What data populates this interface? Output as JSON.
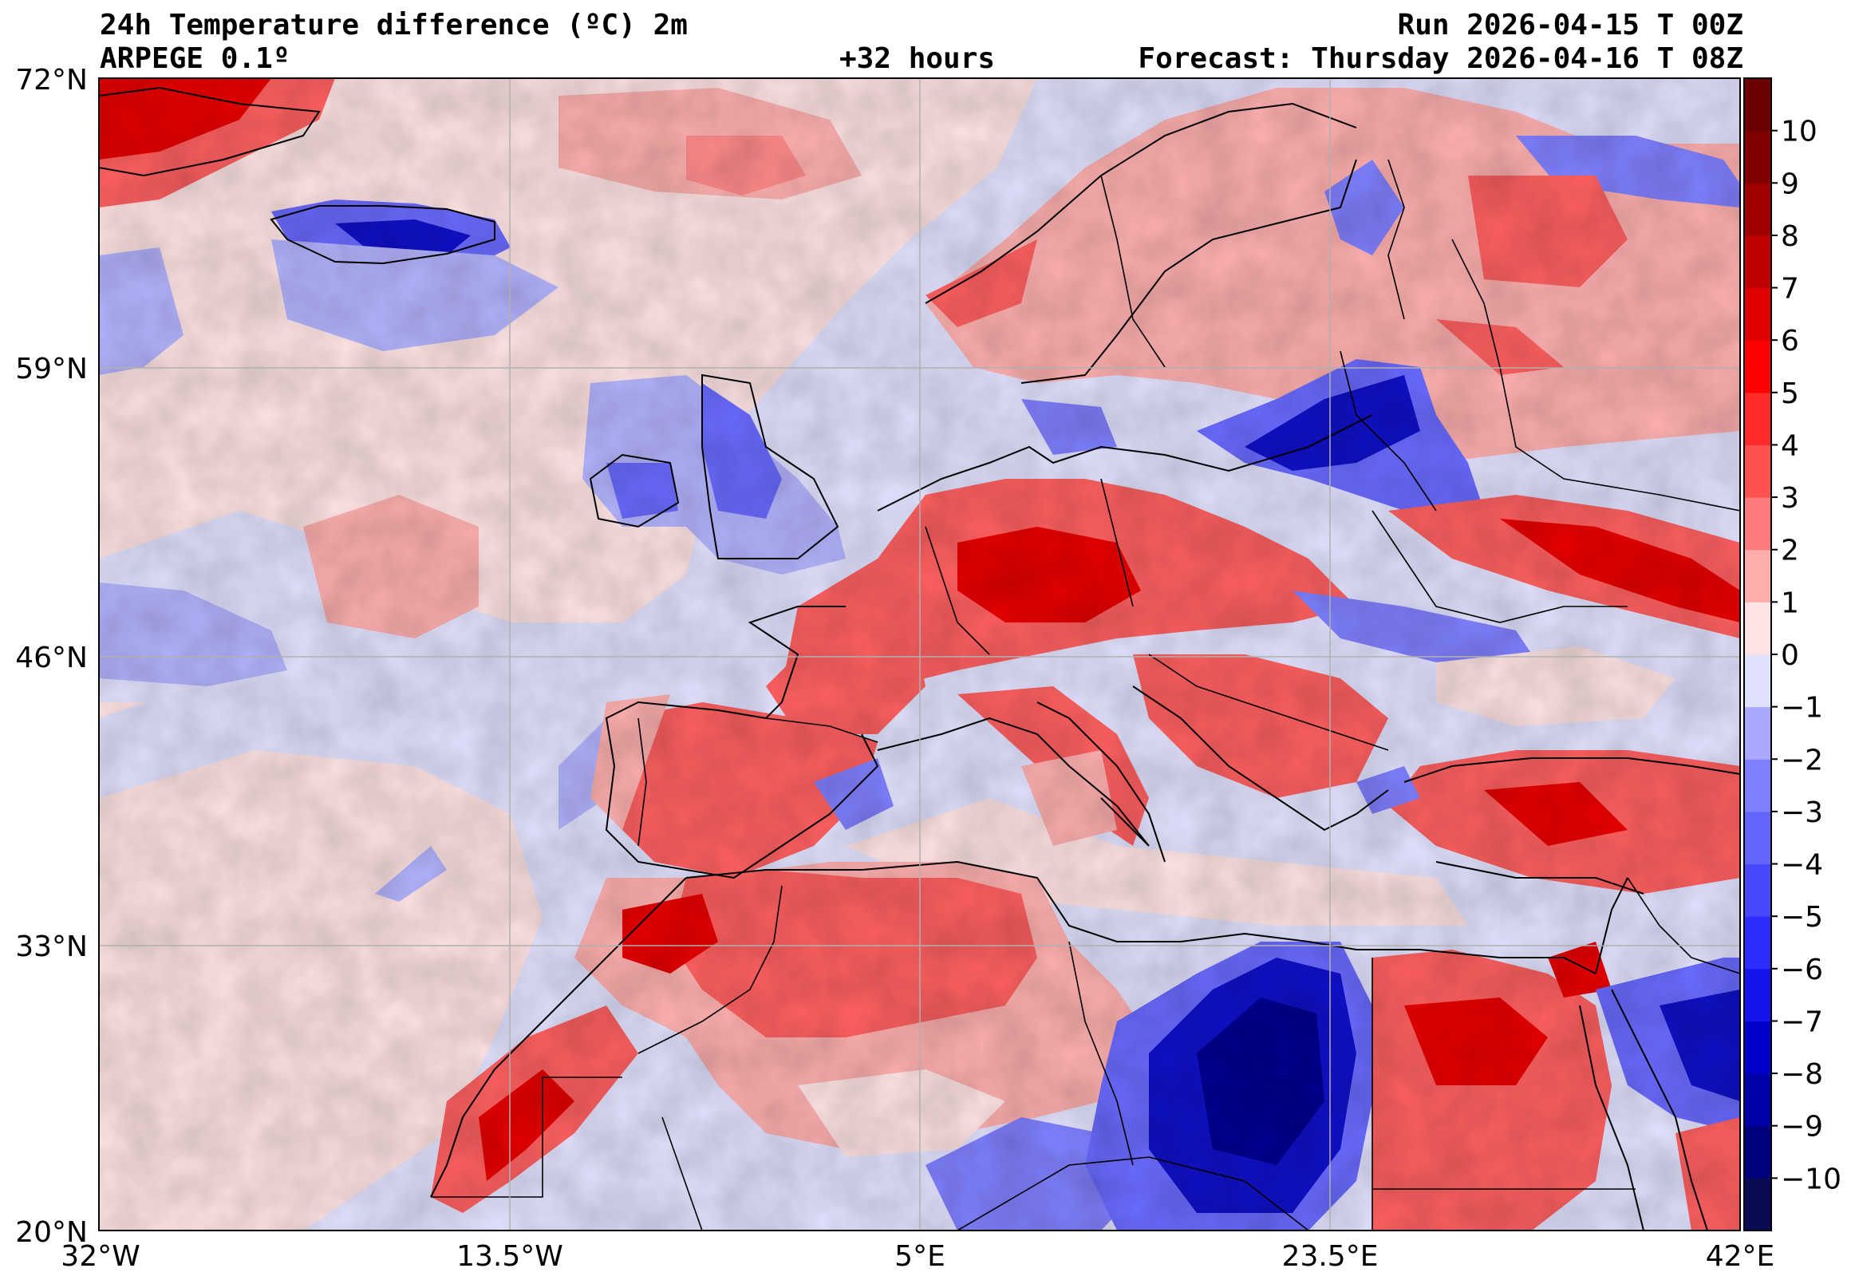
{
  "header": {
    "title": "24h Temperature difference (ºC) 2m",
    "model": "ARPEGE 0.1º",
    "lead_time": "+32 hours",
    "run": "Run 2026-04-15 T 00Z",
    "forecast": "Forecast: Thursday 2026-04-16 T 08Z"
  },
  "axes": {
    "lat_labels": [
      "72°N",
      "59°N",
      "46°N",
      "33°N",
      "20°N"
    ],
    "lon_labels": [
      "32°W",
      "13.5°W",
      "5°E",
      "23.5°E",
      "42°E"
    ]
  },
  "colorbar": {
    "ticks": [
      "10",
      "9",
      "8",
      "7",
      "6",
      "5",
      "4",
      "3",
      "2",
      "1",
      "0",
      "−1",
      "−2",
      "−3",
      "−4",
      "−5",
      "−6",
      "−7",
      "−8",
      "−9",
      "−10"
    ],
    "colors": [
      "#0a0a55",
      "#00007a",
      "#0000a8",
      "#0000cc",
      "#1414ee",
      "#2d2dff",
      "#4848ff",
      "#6464ff",
      "#8080ff",
      "#a8a8ff",
      "#e0e0ff",
      "#ffe2e2",
      "#ffacac",
      "#ff7a7a",
      "#ff5050",
      "#ff2a2a",
      "#ff0000",
      "#e00000",
      "#c00000",
      "#a00000",
      "#800000",
      "#6a0000"
    ]
  },
  "map_colors": {
    "ocean_light": "#e2e2ff",
    "pale_pink": "#ffe4e4",
    "pink": "#ffb0b0",
    "red": "#ff6060",
    "dark_red": "#e80000",
    "light_blue": "#b4b4ff",
    "blue": "#6a6aff",
    "dark_blue": "#1010c8",
    "navy": "#000090"
  }
}
